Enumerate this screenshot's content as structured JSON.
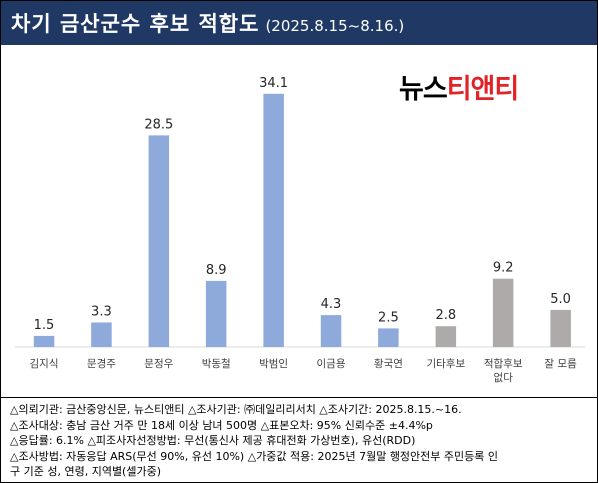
{
  "header": {
    "title": "차기 금산군수 후보 적합도",
    "subtitle": "(2025.8.15~8.16.)"
  },
  "logo": {
    "part_a": "뉴스",
    "part_b": "티앤티"
  },
  "colors": {
    "header_bg": "#1f3864",
    "bar_candidate": "#8eaadb",
    "bar_other": "#aeaaaa",
    "logo_red": "#e32227"
  },
  "chart_data": {
    "type": "bar",
    "categories": [
      [
        "김지식"
      ],
      [
        "문경주"
      ],
      [
        "문정우"
      ],
      [
        "박동철"
      ],
      [
        "박범인"
      ],
      [
        "이금용"
      ],
      [
        "황국연"
      ],
      [
        "기타후보"
      ],
      [
        "적합후보",
        "없다"
      ],
      [
        "잘 모름"
      ]
    ],
    "values": [
      1.5,
      3.3,
      28.5,
      8.9,
      34.1,
      4.3,
      2.5,
      2.8,
      9.2,
      5.0
    ],
    "value_labels": [
      "1.5",
      "3.3",
      "28.5",
      "8.9",
      "34.1",
      "4.3",
      "2.5",
      "2.8",
      "9.2",
      "5.0"
    ],
    "bar_colors": [
      "#8eaadb",
      "#8eaadb",
      "#8eaadb",
      "#8eaadb",
      "#8eaadb",
      "#8eaadb",
      "#8eaadb",
      "#aeaaaa",
      "#aeaaaa",
      "#aeaaaa"
    ],
    "ylim": [
      0,
      40
    ],
    "grid": false,
    "legend": false
  },
  "notes": [
    "△의뢰기관: 금산중앙신문, 뉴스티앤티 △조사기관: ㈜데일리리서치 △조사기간: 2025.8.15.~16.",
    "△조사대상: 충남 금산 거주 만 18세 이상 남녀 500명 △표본오차: 95% 신뢰수준 ±4.4%p",
    "△응답률: 6.1% △피조사자선정방법: 무선(통신사 제공 휴대전화 가상번호), 유선(RDD)",
    "△조사방법: 자동응답 ARS(무선 90%, 유선 10%) △가중값 적용: 2025년 7월말 행정안전부 주민등록 인",
    "구 기준 성, 연령, 지역별(셀가중)"
  ]
}
